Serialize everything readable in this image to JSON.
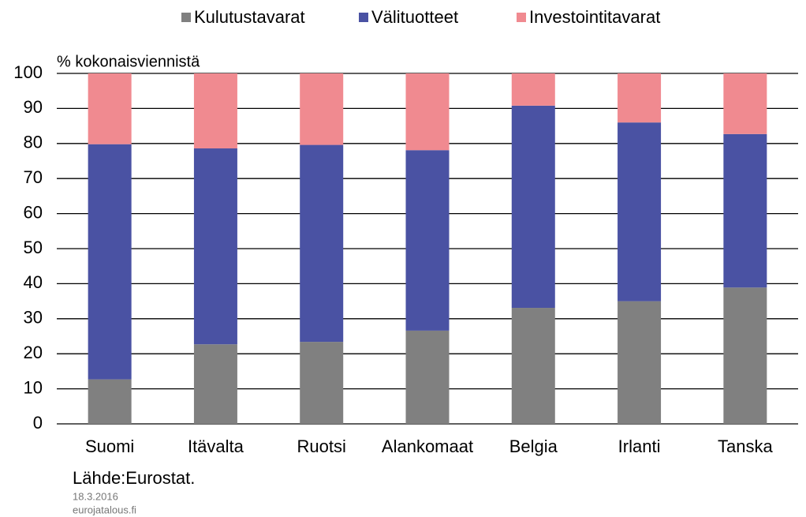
{
  "chart_data": {
    "type": "stacked_bar",
    "y_label": "% kokonaisviennistä",
    "categories": [
      "Suomi",
      "Itävalta",
      "Ruotsi",
      "Alankomaat",
      "Belgia",
      "Irlanti",
      "Tanska"
    ],
    "series": [
      {
        "name": "Kulutustavarat",
        "color": "#808080",
        "values": [
          12.7,
          22.7,
          23.4,
          26.6,
          33.1,
          35.0,
          38.9
        ]
      },
      {
        "name": "Välituotteet",
        "color": "#4a52a3",
        "values": [
          67.1,
          55.9,
          56.2,
          51.5,
          57.7,
          51.0,
          43.8
        ]
      },
      {
        "name": "Investointitavarat",
        "color": "#f08a90",
        "values": [
          20.2,
          21.4,
          20.4,
          21.9,
          9.2,
          14.0,
          17.3
        ]
      }
    ],
    "ylim": [
      0,
      100
    ],
    "yticks": [
      0,
      10,
      20,
      30,
      40,
      50,
      60,
      70,
      80,
      90,
      100
    ],
    "grid": true,
    "source": "Lähde:Eurostat.",
    "date": "18.3.2016",
    "website": "eurojatalous.fi"
  }
}
